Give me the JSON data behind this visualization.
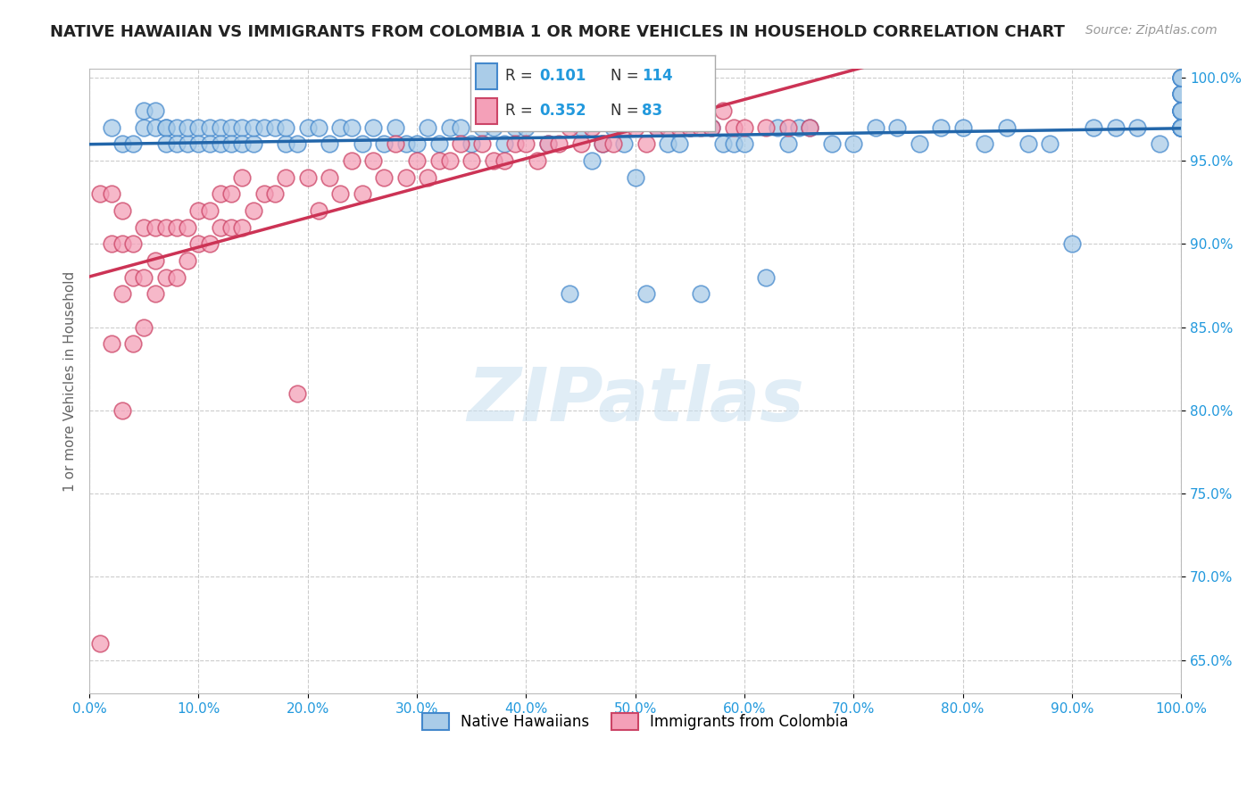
{
  "title": "NATIVE HAWAIIAN VS IMMIGRANTS FROM COLOMBIA 1 OR MORE VEHICLES IN HOUSEHOLD CORRELATION CHART",
  "source": "Source: ZipAtlas.com",
  "xlabel": "",
  "ylabel": "1 or more Vehicles in Household",
  "xmin": 0.0,
  "xmax": 1.0,
  "ymin": 0.63,
  "ymax": 1.005,
  "blue_R": 0.101,
  "blue_N": 114,
  "pink_R": 0.352,
  "pink_N": 83,
  "blue_face_color": "#aacce8",
  "pink_face_color": "#f4a0b8",
  "blue_edge_color": "#4488cc",
  "pink_edge_color": "#cc4466",
  "blue_line_color": "#2266aa",
  "pink_line_color": "#cc3355",
  "legend_val_color": "#2299dd",
  "background_color": "#ffffff",
  "grid_color": "#cccccc",
  "ytick_vals": [
    0.65,
    0.7,
    0.75,
    0.8,
    0.85,
    0.9,
    0.95,
    1.0
  ],
  "ytick_labels": [
    "65.0%",
    "70.0%",
    "75.0%",
    "80.0%",
    "85.0%",
    "90.0%",
    "95.0%",
    "100.0%"
  ],
  "xtick_vals": [
    0.0,
    0.1,
    0.2,
    0.3,
    0.4,
    0.5,
    0.6,
    0.7,
    0.8,
    0.9,
    1.0
  ],
  "xtick_labels": [
    "0.0%",
    "10.0%",
    "20.0%",
    "30.0%",
    "40.0%",
    "50.0%",
    "60.0%",
    "70.0%",
    "80.0%",
    "90.0%",
    "100.0%"
  ],
  "blue_scatter_x": [
    0.02,
    0.03,
    0.04,
    0.05,
    0.05,
    0.06,
    0.06,
    0.07,
    0.07,
    0.07,
    0.08,
    0.08,
    0.09,
    0.09,
    0.1,
    0.1,
    0.11,
    0.11,
    0.12,
    0.12,
    0.13,
    0.13,
    0.14,
    0.14,
    0.15,
    0.15,
    0.16,
    0.17,
    0.18,
    0.18,
    0.19,
    0.2,
    0.21,
    0.22,
    0.23,
    0.24,
    0.25,
    0.26,
    0.27,
    0.28,
    0.29,
    0.3,
    0.31,
    0.32,
    0.33,
    0.34,
    0.35,
    0.36,
    0.37,
    0.38,
    0.39,
    0.4,
    0.42,
    0.44,
    0.45,
    0.46,
    0.47,
    0.48,
    0.49,
    0.5,
    0.51,
    0.52,
    0.53,
    0.54,
    0.55,
    0.56,
    0.57,
    0.58,
    0.59,
    0.6,
    0.62,
    0.63,
    0.64,
    0.65,
    0.66,
    0.68,
    0.7,
    0.72,
    0.74,
    0.76,
    0.78,
    0.8,
    0.82,
    0.84,
    0.86,
    0.88,
    0.9,
    0.92,
    0.94,
    0.96,
    0.98,
    1.0,
    1.0,
    1.0,
    1.0,
    1.0,
    1.0,
    1.0,
    1.0,
    1.0,
    1.0,
    1.0,
    1.0,
    1.0,
    1.0,
    1.0,
    1.0,
    1.0,
    1.0,
    1.0,
    1.0,
    1.0,
    1.0,
    1.0
  ],
  "blue_scatter_y": [
    0.97,
    0.96,
    0.96,
    0.97,
    0.98,
    0.97,
    0.98,
    0.97,
    0.97,
    0.96,
    0.97,
    0.96,
    0.96,
    0.97,
    0.97,
    0.96,
    0.97,
    0.96,
    0.97,
    0.96,
    0.97,
    0.96,
    0.97,
    0.96,
    0.96,
    0.97,
    0.97,
    0.97,
    0.96,
    0.97,
    0.96,
    0.97,
    0.97,
    0.96,
    0.97,
    0.97,
    0.96,
    0.97,
    0.96,
    0.97,
    0.96,
    0.96,
    0.97,
    0.96,
    0.97,
    0.97,
    0.96,
    0.97,
    0.97,
    0.96,
    0.97,
    0.97,
    0.96,
    0.87,
    0.97,
    0.95,
    0.96,
    0.97,
    0.96,
    0.94,
    0.87,
    0.97,
    0.96,
    0.96,
    0.97,
    0.87,
    0.97,
    0.96,
    0.96,
    0.96,
    0.88,
    0.97,
    0.96,
    0.97,
    0.97,
    0.96,
    0.96,
    0.97,
    0.97,
    0.96,
    0.97,
    0.97,
    0.96,
    0.97,
    0.96,
    0.96,
    0.9,
    0.97,
    0.97,
    0.97,
    0.96,
    0.97,
    0.98,
    0.98,
    0.98,
    0.98,
    0.99,
    0.98,
    0.99,
    0.99,
    0.99,
    1.0,
    1.0,
    1.0,
    1.0,
    0.98,
    0.97,
    0.97,
    0.97,
    0.97,
    0.97,
    0.97,
    0.97,
    0.97
  ],
  "pink_scatter_x": [
    0.01,
    0.01,
    0.02,
    0.02,
    0.02,
    0.03,
    0.03,
    0.03,
    0.03,
    0.04,
    0.04,
    0.04,
    0.05,
    0.05,
    0.05,
    0.06,
    0.06,
    0.06,
    0.07,
    0.07,
    0.08,
    0.08,
    0.09,
    0.09,
    0.1,
    0.1,
    0.11,
    0.11,
    0.12,
    0.12,
    0.13,
    0.13,
    0.14,
    0.14,
    0.15,
    0.16,
    0.17,
    0.18,
    0.19,
    0.2,
    0.21,
    0.22,
    0.23,
    0.24,
    0.25,
    0.26,
    0.27,
    0.28,
    0.29,
    0.3,
    0.31,
    0.32,
    0.33,
    0.34,
    0.35,
    0.36,
    0.37,
    0.38,
    0.39,
    0.4,
    0.41,
    0.42,
    0.43,
    0.44,
    0.45,
    0.46,
    0.47,
    0.48,
    0.49,
    0.5,
    0.51,
    0.52,
    0.53,
    0.54,
    0.55,
    0.56,
    0.57,
    0.58,
    0.59,
    0.6,
    0.62,
    0.64,
    0.66
  ],
  "pink_scatter_y": [
    0.66,
    0.93,
    0.84,
    0.9,
    0.93,
    0.8,
    0.87,
    0.9,
    0.92,
    0.84,
    0.88,
    0.9,
    0.85,
    0.88,
    0.91,
    0.87,
    0.89,
    0.91,
    0.88,
    0.91,
    0.88,
    0.91,
    0.89,
    0.91,
    0.9,
    0.92,
    0.9,
    0.92,
    0.91,
    0.93,
    0.91,
    0.93,
    0.91,
    0.94,
    0.92,
    0.93,
    0.93,
    0.94,
    0.81,
    0.94,
    0.92,
    0.94,
    0.93,
    0.95,
    0.93,
    0.95,
    0.94,
    0.96,
    0.94,
    0.95,
    0.94,
    0.95,
    0.95,
    0.96,
    0.95,
    0.96,
    0.95,
    0.95,
    0.96,
    0.96,
    0.95,
    0.96,
    0.96,
    0.97,
    0.96,
    0.97,
    0.96,
    0.96,
    0.97,
    0.97,
    0.96,
    0.97,
    0.97,
    0.97,
    0.97,
    0.97,
    0.97,
    0.98,
    0.97,
    0.97,
    0.97,
    0.97,
    0.97
  ]
}
